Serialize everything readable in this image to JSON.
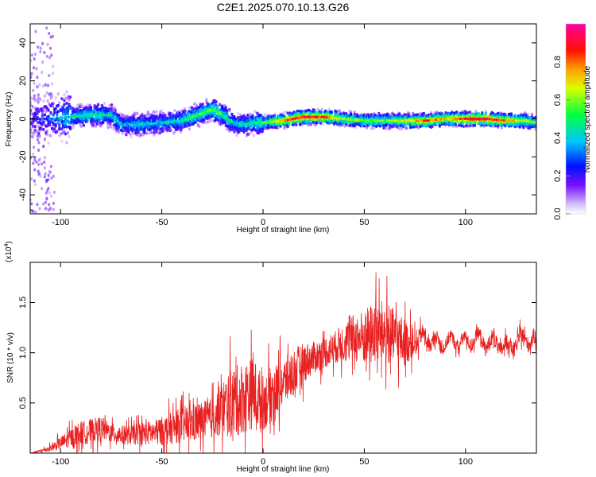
{
  "figure": {
    "title": "C2E1.2025.070.10.13.G26"
  },
  "chart_data": [
    {
      "type": "heatmap",
      "title": "C2E1.2025.070.10.13.G26",
      "xlabel": "Height of straight line (km)",
      "ylabel": "Frequency (Hz)",
      "xlim": [
        -115,
        135
      ],
      "ylim": [
        -50,
        50
      ],
      "xticks": [
        -100,
        -50,
        0,
        50,
        100
      ],
      "yticks": [
        -40,
        -20,
        0,
        20,
        40
      ],
      "colorbar": {
        "label": "Normalized spectral amplitude",
        "range": [
          0,
          1
        ],
        "ticks": [
          "0.0",
          "0.2",
          "0.4",
          "0.6",
          "0.8"
        ],
        "colors": [
          "#ffffff",
          "#c8b4ff",
          "#6a00ff",
          "#0000ff",
          "#00c8ff",
          "#00ff00",
          "#ffff00",
          "#ff8000",
          "#ff0000",
          "#ff00a0"
        ]
      },
      "ridge": {
        "x": [
          -115,
          -105,
          -95,
          -85,
          -75,
          -70,
          -60,
          -50,
          -40,
          -30,
          -25,
          -20,
          -15,
          -10,
          -5,
          0,
          10,
          20,
          30,
          40,
          50,
          60,
          70,
          80,
          90,
          100,
          110,
          120,
          130,
          135
        ],
        "center_hz": [
          0,
          0,
          1,
          2,
          2,
          -3,
          -3,
          -2,
          -1,
          3,
          5,
          2,
          -2,
          -3,
          -2,
          -2,
          -1,
          1,
          1,
          0,
          -1,
          -1,
          -1,
          -1,
          0,
          0,
          0,
          -1,
          -1,
          -2
        ],
        "amplitude": [
          0.15,
          0.3,
          0.4,
          0.45,
          0.4,
          0.35,
          0.4,
          0.35,
          0.45,
          0.5,
          0.55,
          0.5,
          0.4,
          0.4,
          0.45,
          0.5,
          0.75,
          0.85,
          0.8,
          0.6,
          0.55,
          0.55,
          0.65,
          0.8,
          0.7,
          0.85,
          0.9,
          0.75,
          0.6,
          0.5
        ]
      }
    },
    {
      "type": "line",
      "xlabel": "Height of straight line (km)",
      "ylabel": "SNR (10 * v/v)",
      "yscale_label": "(x10",
      "yscale_exp": "4",
      "yscale_close": ")",
      "xlim": [
        -115,
        135
      ],
      "ylim": [
        0,
        1.9
      ],
      "xticks": [
        -100,
        -50,
        0,
        50,
        100
      ],
      "yticks": [
        "0.5",
        "1.0",
        "1.5"
      ],
      "ytick_values": [
        0.5,
        1.0,
        1.5
      ],
      "color": "#e82020",
      "series": [
        {
          "x": [
            -115,
            -110,
            -105,
            -100,
            -95,
            -90,
            -85,
            -80,
            -75,
            -70,
            -65,
            -60,
            -55,
            -50,
            -45,
            -40,
            -35,
            -30,
            -25,
            -20,
            -15,
            -10,
            -5,
            0,
            5,
            10,
            15,
            20,
            25,
            30,
            35,
            40,
            45,
            50,
            55,
            60,
            65,
            70,
            75,
            80,
            85,
            90,
            95,
            100,
            105,
            110,
            115,
            120,
            125,
            130,
            135
          ],
          "mean": [
            0.0,
            0.02,
            0.05,
            0.1,
            0.15,
            0.2,
            0.22,
            0.25,
            0.2,
            0.18,
            0.18,
            0.2,
            0.2,
            0.22,
            0.25,
            0.28,
            0.3,
            0.32,
            0.35,
            0.45,
            0.5,
            0.55,
            0.6,
            0.5,
            0.6,
            0.7,
            0.8,
            0.9,
            0.95,
            1.0,
            1.05,
            1.1,
            1.15,
            1.15,
            1.2,
            1.2,
            1.15,
            1.1,
            1.1,
            1.15,
            1.1,
            1.1,
            1.12,
            1.1,
            1.15,
            1.1,
            1.1,
            1.05,
            1.1,
            1.15,
            1.1
          ],
          "noise": [
            0.0,
            0.02,
            0.04,
            0.08,
            0.12,
            0.15,
            0.15,
            0.15,
            0.12,
            0.12,
            0.12,
            0.15,
            0.15,
            0.18,
            0.2,
            0.22,
            0.25,
            0.25,
            0.25,
            0.35,
            0.45,
            0.45,
            0.45,
            0.35,
            0.35,
            0.3,
            0.3,
            0.25,
            0.2,
            0.2,
            0.2,
            0.25,
            0.3,
            0.35,
            0.4,
            0.4,
            0.35,
            0.3,
            0.15,
            0.1,
            0.08,
            0.08,
            0.08,
            0.08,
            0.08,
            0.1,
            0.1,
            0.1,
            0.1,
            0.1,
            0.1
          ]
        }
      ]
    }
  ]
}
